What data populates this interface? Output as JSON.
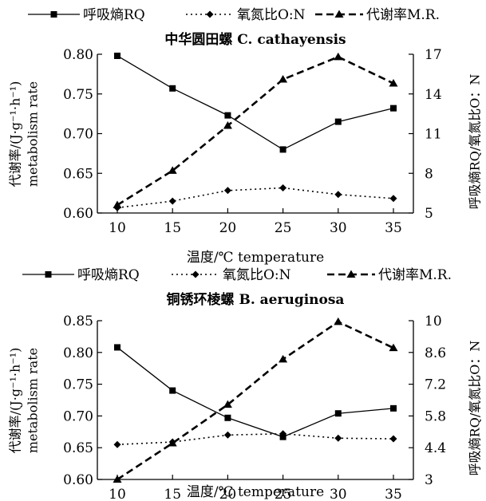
{
  "chart_data": [
    {
      "type": "line",
      "title": "中华圆田螺 C. cathayensis",
      "legend": [
        "呼吸熵RQ",
        "氧氮比O:N",
        "代谢率M.R."
      ],
      "legend_placement": "top",
      "xlabel": "温度/℃ temperature",
      "ylabel_left": [
        "代谢率/(J·g⁻¹·h⁻¹)",
        "metabolism rate"
      ],
      "ylabel_right": "呼吸熵RQ/氧氮比O：N",
      "x": [
        10,
        15,
        20,
        25,
        30,
        35
      ],
      "x_ticks": [
        "10",
        "15",
        "20",
        "25",
        "30",
        "35"
      ],
      "yleft_lim": [
        0.6,
        0.8
      ],
      "yleft_ticks": [
        "0.60",
        "0.65",
        "0.70",
        "0.75",
        "0.80"
      ],
      "yright_lim": [
        5,
        17
      ],
      "yright_ticks": [
        "5",
        "8",
        "11",
        "14",
        "17"
      ],
      "grid": false,
      "series": [
        {
          "name": "呼吸熵RQ",
          "axis": "left",
          "marker": "square",
          "dash": "solid",
          "values": [
            0.798,
            0.757,
            0.723,
            0.68,
            0.715,
            0.732
          ]
        },
        {
          "name": "氧氮比O:N",
          "axis": "right",
          "marker": "diamond",
          "dash": "dotted",
          "values": [
            5.4,
            5.9,
            6.7,
            6.9,
            6.4,
            6.1
          ]
        },
        {
          "name": "代谢率M.R.",
          "axis": "right",
          "marker": "triangle",
          "dash": "dashed",
          "values": [
            5.6,
            8.2,
            11.6,
            15.1,
            16.8,
            14.8
          ]
        }
      ]
    },
    {
      "type": "line",
      "title": "铜锈环棱螺 B. aeruginosa",
      "legend": [
        "呼吸熵RQ",
        "氧氮比O:N",
        "代谢率M.R."
      ],
      "legend_placement": "top",
      "xlabel": "温度/℃ temperature",
      "ylabel_left": [
        "代谢率/(J·g⁻¹·h⁻¹)",
        "metabolism rate"
      ],
      "ylabel_right": "呼吸熵RQ/氧氮比O：N",
      "x": [
        10,
        15,
        20,
        25,
        30,
        35
      ],
      "x_ticks": [
        "10",
        "15",
        "20",
        "25",
        "30",
        "35"
      ],
      "yleft_lim": [
        0.6,
        0.85
      ],
      "yleft_ticks": [
        "0.60",
        "0.65",
        "0.70",
        "0.75",
        "0.80",
        "0.85"
      ],
      "yright_lim": [
        3,
        10
      ],
      "yright_ticks": [
        "3",
        "4.4",
        "5.8",
        "7.2",
        "8.6",
        "10"
      ],
      "grid": false,
      "series": [
        {
          "name": "呼吸熵RQ",
          "axis": "left",
          "marker": "square",
          "dash": "solid",
          "values": [
            0.808,
            0.74,
            0.697,
            0.667,
            0.704,
            0.712
          ]
        },
        {
          "name": "氧氮比O:N",
          "axis": "left",
          "marker": "diamond",
          "dash": "dotted",
          "values": [
            0.655,
            0.659,
            0.67,
            0.672,
            0.665,
            0.664
          ]
        },
        {
          "name": "代谢率M.R.",
          "axis": "right",
          "marker": "triangle",
          "dash": "dashed",
          "values": [
            3.0,
            4.6,
            6.3,
            8.3,
            9.95,
            8.8
          ]
        }
      ]
    }
  ]
}
